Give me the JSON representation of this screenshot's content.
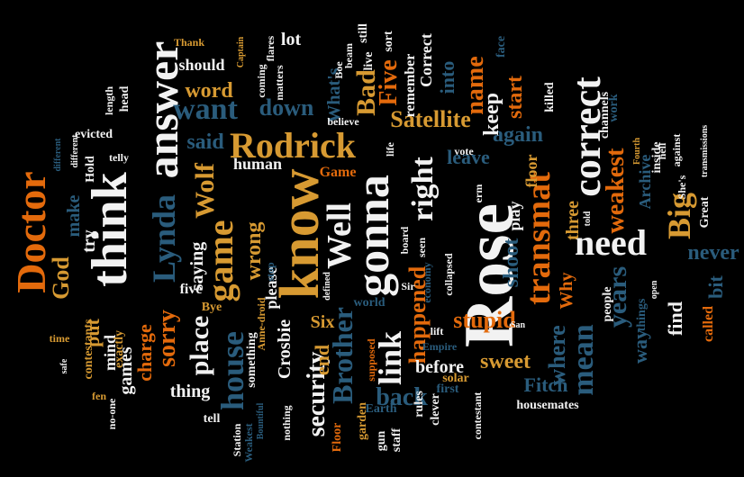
{
  "palette": {
    "background": "#000000",
    "white": "#f2f2f2",
    "orange": "#e36a0c",
    "tan": "#d79a32",
    "teal": "#2a5c7c",
    "navy": "#163a59"
  },
  "words": [
    {
      "text": "Rose"
    },
    {
      "text": "know"
    },
    {
      "text": "think"
    },
    {
      "text": "gonna"
    },
    {
      "text": "answer"
    },
    {
      "text": "Doctor"
    },
    {
      "text": "correct"
    },
    {
      "text": "transmat"
    },
    {
      "text": "game"
    },
    {
      "text": "house"
    },
    {
      "text": "need"
    },
    {
      "text": "Rodrick"
    },
    {
      "text": "Lynda"
    },
    {
      "text": "Well"
    },
    {
      "text": "right"
    },
    {
      "text": "link"
    },
    {
      "text": "Brother"
    },
    {
      "text": "mean"
    },
    {
      "text": "Big"
    },
    {
      "text": "want"
    },
    {
      "text": "Satellite"
    },
    {
      "text": "name"
    },
    {
      "text": "weakest"
    },
    {
      "text": "years"
    },
    {
      "text": "place"
    },
    {
      "text": "Wolf"
    },
    {
      "text": "sorry"
    },
    {
      "text": "security"
    },
    {
      "text": "happened"
    },
    {
      "text": "down"
    },
    {
      "text": "Bad"
    },
    {
      "text": "Five"
    },
    {
      "text": "where"
    },
    {
      "text": "back"
    },
    {
      "text": "stupid"
    },
    {
      "text": "sweet"
    },
    {
      "text": "never"
    },
    {
      "text": "God"
    },
    {
      "text": "wrong"
    },
    {
      "text": "again"
    },
    {
      "text": "leave"
    },
    {
      "text": "shoot"
    },
    {
      "text": "play"
    },
    {
      "text": "floor"
    },
    {
      "text": "three"
    },
    {
      "text": "keep"
    },
    {
      "text": "start"
    },
    {
      "text": "said"
    },
    {
      "text": "word"
    },
    {
      "text": "should"
    },
    {
      "text": "saying"
    },
    {
      "text": "charge"
    },
    {
      "text": "games"
    },
    {
      "text": "mind"
    },
    {
      "text": "put"
    },
    {
      "text": "try"
    },
    {
      "text": "make"
    },
    {
      "text": "end"
    },
    {
      "text": "Crosbie"
    },
    {
      "text": "Six"
    },
    {
      "text": "before"
    },
    {
      "text": "Fitch"
    },
    {
      "text": "find"
    },
    {
      "text": "bit"
    },
    {
      "text": "way"
    },
    {
      "text": "called"
    },
    {
      "text": "Why"
    },
    {
      "text": "Archive"
    },
    {
      "text": "What's"
    },
    {
      "text": "into"
    },
    {
      "text": "Correct"
    },
    {
      "text": "remember"
    },
    {
      "text": "please"
    },
    {
      "text": "lot"
    },
    {
      "text": "human"
    },
    {
      "text": "thing"
    },
    {
      "text": "contestants"
    },
    {
      "text": "five"
    },
    {
      "text": "something"
    },
    {
      "text": "exactly"
    },
    {
      "text": "Bye"
    },
    {
      "text": "Game"
    },
    {
      "text": "collapsed"
    },
    {
      "text": "erm"
    },
    {
      "text": "board"
    },
    {
      "text": "seen"
    },
    {
      "text": "people"
    },
    {
      "text": "things"
    },
    {
      "text": "Great"
    },
    {
      "text": "She's"
    },
    {
      "text": "inside"
    },
    {
      "text": "against"
    },
    {
      "text": "hell"
    },
    {
      "text": "work"
    },
    {
      "text": "channels"
    },
    {
      "text": "killed"
    },
    {
      "text": "face"
    },
    {
      "text": "sort"
    },
    {
      "text": "still"
    },
    {
      "text": "live"
    },
    {
      "text": "Boe"
    },
    {
      "text": "beam"
    },
    {
      "text": "flares"
    },
    {
      "text": "coming"
    },
    {
      "text": "matters"
    },
    {
      "text": "Captain"
    },
    {
      "text": "Thank"
    },
    {
      "text": "head"
    },
    {
      "text": "length"
    },
    {
      "text": "evicted"
    },
    {
      "text": "different"
    },
    {
      "text": "telly"
    },
    {
      "text": "Hold"
    },
    {
      "text": "time"
    },
    {
      "text": "safe"
    },
    {
      "text": "fen"
    },
    {
      "text": "no-one"
    },
    {
      "text": "tell"
    },
    {
      "text": "Station"
    },
    {
      "text": "Weakest"
    },
    {
      "text": "Bountiful"
    },
    {
      "text": "nothing"
    },
    {
      "text": "Anne-droid"
    },
    {
      "text": "Floor"
    },
    {
      "text": "garden"
    },
    {
      "text": "supposed"
    },
    {
      "text": "defined"
    },
    {
      "text": "stop"
    },
    {
      "text": "world"
    },
    {
      "text": "economy"
    },
    {
      "text": "lift"
    },
    {
      "text": "Empire"
    },
    {
      "text": "Sir"
    },
    {
      "text": "solar"
    },
    {
      "text": "first"
    },
    {
      "text": "clever"
    },
    {
      "text": "rules"
    },
    {
      "text": "Earth"
    },
    {
      "text": "gun"
    },
    {
      "text": "staff"
    },
    {
      "text": "contestant"
    },
    {
      "text": "housemates"
    },
    {
      "text": "San"
    },
    {
      "text": "open"
    },
    {
      "text": "told"
    },
    {
      "text": "Fourth"
    },
    {
      "text": "vote"
    },
    {
      "text": "transmissions"
    },
    {
      "text": "believe"
    },
    {
      "text": "life"
    },
    {
      "text": "different"
    }
  ]
}
